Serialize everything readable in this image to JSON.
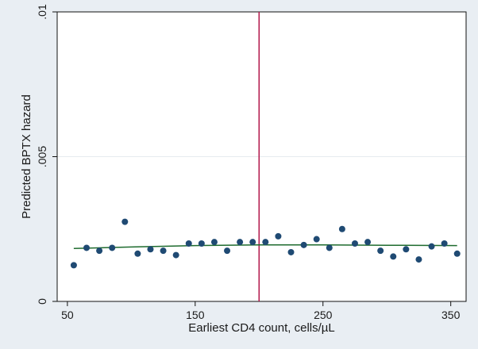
{
  "chart_data": {
    "type": "scatter",
    "title": "",
    "xlabel": "Earliest CD4 count, cells/µL",
    "ylabel": "Predicted BPTX hazard",
    "xlim": [
      42,
      362
    ],
    "ylim": [
      0,
      0.01
    ],
    "x_ticks": [
      50,
      150,
      250,
      350
    ],
    "x_tick_labels": [
      "50",
      "150",
      "250",
      "350"
    ],
    "y_ticks": [
      0,
      0.005,
      0.01
    ],
    "y_tick_labels": [
      "0",
      ".005",
      ".01"
    ],
    "grid": {
      "horizontal": true,
      "vertical": false
    },
    "background": {
      "outer": "#e9eef3",
      "plot": "#ffffff"
    },
    "reference_line": {
      "x": 200,
      "color": "#b2154a"
    },
    "series": [
      {
        "kind": "points",
        "color": "#1f4a73",
        "x": [
          55,
          65,
          75,
          85,
          95,
          105,
          115,
          125,
          135,
          145,
          155,
          165,
          175,
          185,
          195,
          205,
          215,
          225,
          235,
          245,
          255,
          265,
          275,
          285,
          295,
          305,
          315,
          325,
          335,
          345,
          355
        ],
        "y": [
          0.00125,
          0.00185,
          0.00175,
          0.00185,
          0.00275,
          0.00165,
          0.0018,
          0.00175,
          0.0016,
          0.002,
          0.002,
          0.00205,
          0.00175,
          0.00205,
          0.00205,
          0.00205,
          0.00225,
          0.0017,
          0.00195,
          0.00215,
          0.00185,
          0.0025,
          0.002,
          0.00205,
          0.00175,
          0.00155,
          0.0018,
          0.00145,
          0.0019,
          0.002,
          0.00165
        ]
      },
      {
        "kind": "line",
        "color": "#1e6b2e",
        "x": [
          55,
          100,
          150,
          200,
          250,
          300,
          355
        ],
        "y": [
          0.00183,
          0.00188,
          0.00193,
          0.00195,
          0.00195,
          0.00194,
          0.00193
        ]
      }
    ]
  }
}
